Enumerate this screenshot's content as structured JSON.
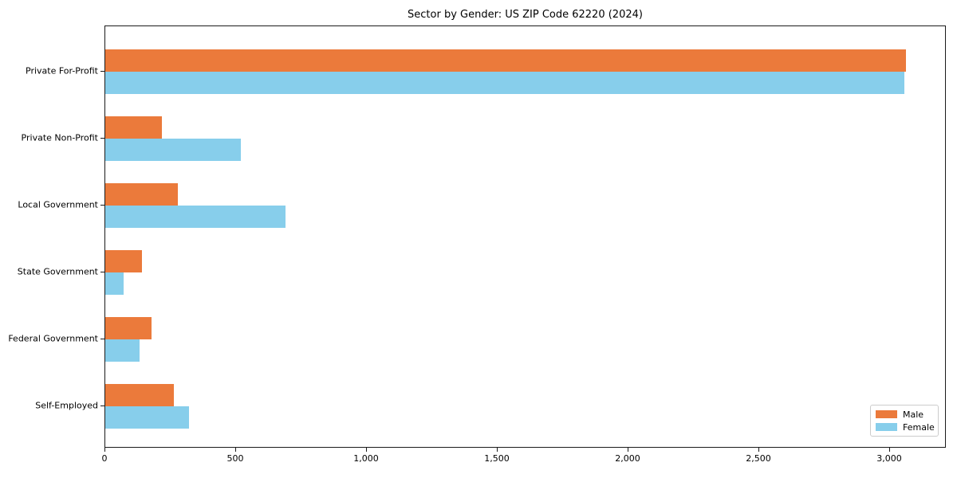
{
  "chart_data": {
    "type": "bar",
    "orientation": "horizontal",
    "title": "Sector by Gender: US ZIP Code 62220 (2024)",
    "categories": [
      "Private For-Profit",
      "Private Non-Profit",
      "Local Government",
      "State Government",
      "Federal Government",
      "Self-Employed"
    ],
    "series": [
      {
        "name": "Male",
        "color": "#EB7A3B",
        "values": [
          3060,
          216,
          277,
          139,
          177,
          261
        ]
      },
      {
        "name": "Female",
        "color": "#87CEEB",
        "values": [
          3055,
          518,
          688,
          71,
          131,
          321
        ]
      }
    ],
    "xlabel": "",
    "ylabel": "",
    "xlim": [
      0,
      3216
    ],
    "xticks": [
      0,
      500,
      1000,
      1500,
      2000,
      2500,
      3000
    ],
    "xtick_labels": [
      "0",
      "500",
      "1,000",
      "1,500",
      "2,000",
      "2,500",
      "3,000"
    ],
    "grid": false,
    "legend_position": "lower right",
    "legend": {
      "male_label": "Male",
      "female_label": "Female"
    }
  }
}
